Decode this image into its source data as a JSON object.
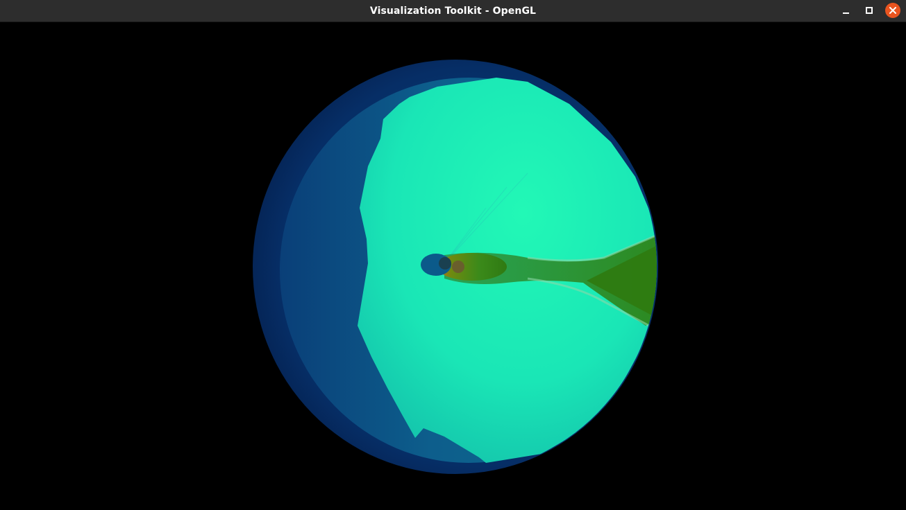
{
  "window": {
    "title": "Visualization Toolkit - OpenGL",
    "controls": {
      "minimize_icon": "minimize-icon",
      "maximize_icon": "maximize-icon",
      "close_icon": "close-icon",
      "close_color": "#e9541f"
    }
  },
  "render": {
    "background": "#000000",
    "colors": {
      "outer_shell": "#052a60",
      "inner_shell": "#0a5a86",
      "main_surface": "#1cf0b4",
      "wake_green": "#3a8a1a",
      "core_orange": "#c87a20",
      "core_dark": "#1a4a5a"
    }
  }
}
